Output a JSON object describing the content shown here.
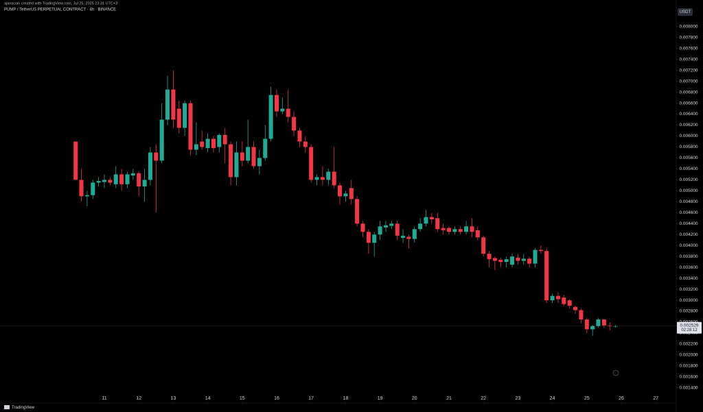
{
  "header": {
    "credit": "ajanscoin created with TradingView.com, Jul 25, 2025 23:31 UTC+3",
    "footer": "TradingView"
  },
  "chart_data": {
    "type": "candlestick",
    "title": "PUMP / TetherUS PERPETUAL CONTRACT · 4h · BINANCE",
    "currency": "USDT",
    "up_color": "#22ab94",
    "down_color": "#f23645",
    "grid": false,
    "xlim": [
      7.972,
      27.594
    ],
    "xticks": [
      11,
      12,
      13,
      14,
      15,
      16,
      17,
      18,
      19,
      20,
      21,
      22,
      23,
      24,
      25,
      26,
      27
    ],
    "ylim": [
      0.00116,
      0.00836
    ],
    "yticks": [
      {
        "value": 0.0014,
        "label": "0.001400"
      },
      {
        "value": 0.0016,
        "label": "0.001600"
      },
      {
        "value": 0.0018,
        "label": "0.001800"
      },
      {
        "value": 0.002,
        "label": "0.002000"
      },
      {
        "value": 0.0022,
        "label": "0.002200"
      },
      {
        "value": 0.0024,
        "label": "0.002400"
      },
      {
        "value": 0.0026,
        "label": "0.002600"
      },
      {
        "value": 0.0028,
        "label": "0.002800"
      },
      {
        "value": 0.003,
        "label": "0.003000"
      },
      {
        "value": 0.0032,
        "label": "0.003200"
      },
      {
        "value": 0.0034,
        "label": "0.003400"
      },
      {
        "value": 0.0036,
        "label": "0.003600"
      },
      {
        "value": 0.0038,
        "label": "0.003800"
      },
      {
        "value": 0.004,
        "label": "0.004000"
      },
      {
        "value": 0.0042,
        "label": "0.004200"
      },
      {
        "value": 0.0044,
        "label": "0.004400"
      },
      {
        "value": 0.0046,
        "label": "0.004600"
      },
      {
        "value": 0.0048,
        "label": "0.004800"
      },
      {
        "value": 0.005,
        "label": "0.005000"
      },
      {
        "value": 0.0052,
        "label": "0.005200"
      },
      {
        "value": 0.0054,
        "label": "0.005400"
      },
      {
        "value": 0.0056,
        "label": "0.005600"
      },
      {
        "value": 0.0058,
        "label": "0.005800"
      },
      {
        "value": 0.006,
        "label": "0.006000"
      },
      {
        "value": 0.0062,
        "label": "0.006200"
      },
      {
        "value": 0.0064,
        "label": "0.006400"
      },
      {
        "value": 0.0066,
        "label": "0.006600"
      },
      {
        "value": 0.0068,
        "label": "0.006800"
      },
      {
        "value": 0.007,
        "label": "0.007000"
      },
      {
        "value": 0.0072,
        "label": "0.007200"
      },
      {
        "value": 0.0074,
        "label": "0.007400"
      },
      {
        "value": 0.0076,
        "label": "0.007600"
      },
      {
        "value": 0.0078,
        "label": "0.007800"
      },
      {
        "value": 0.008,
        "label": "0.008000"
      }
    ],
    "last_price": {
      "value": 0.002529,
      "label": "0.002529"
    },
    "countdown": "02:28:12",
    "x": [
      10.167,
      10.333,
      10.5,
      10.667,
      10.833,
      11,
      11.167,
      11.333,
      11.5,
      11.667,
      11.833,
      12,
      12.167,
      12.333,
      12.5,
      12.667,
      12.833,
      13,
      13.167,
      13.333,
      13.5,
      13.667,
      13.833,
      14,
      14.167,
      14.333,
      14.5,
      14.667,
      14.833,
      15,
      15.167,
      15.333,
      15.5,
      15.667,
      15.833,
      16,
      16.167,
      16.333,
      16.5,
      16.667,
      16.833,
      17,
      17.167,
      17.333,
      17.5,
      17.667,
      17.833,
      18,
      18.167,
      18.333,
      18.5,
      18.667,
      18.833,
      19,
      19.167,
      19.333,
      19.5,
      19.667,
      19.833,
      20,
      20.167,
      20.333,
      20.5,
      20.667,
      20.833,
      21,
      21.167,
      21.333,
      21.5,
      21.667,
      21.833,
      22,
      22.167,
      22.333,
      22.5,
      22.667,
      22.833,
      23,
      23.167,
      23.333,
      23.5,
      23.667,
      23.833,
      24,
      24.167,
      24.333,
      24.5,
      24.667,
      24.833,
      25,
      25.167,
      25.333,
      25.5,
      25.667,
      25.833
    ],
    "open": [
      0.0059,
      0.0052,
      0.0049,
      0.00492,
      0.00515,
      0.00516,
      0.0052,
      0.00512,
      0.0053,
      0.00512,
      0.00528,
      0.00532,
      0.00508,
      0.0052,
      0.0057,
      0.00555,
      0.0063,
      0.00685,
      0.0065,
      0.00615,
      0.0066,
      0.00575,
      0.0059,
      0.00578,
      0.00595,
      0.0058,
      0.00602,
      0.00585,
      0.00525,
      0.0057,
      0.00555,
      0.0058,
      0.00545,
      0.0056,
      0.00595,
      0.00675,
      0.00645,
      0.0065,
      0.00635,
      0.0061,
      0.0059,
      0.0058,
      0.0052,
      0.00525,
      0.0052,
      0.00535,
      0.0051,
      0.0049,
      0.00505,
      0.00485,
      0.0044,
      0.00425,
      0.00405,
      0.0042,
      0.00433,
      0.00436,
      0.0044,
      0.00414,
      0.00416,
      0.00412,
      0.0043,
      0.0044,
      0.00452,
      0.0045,
      0.00432,
      0.00432,
      0.00425,
      0.0043,
      0.00425,
      0.00435,
      0.00428,
      0.00415,
      0.00385,
      0.00377,
      0.00374,
      0.0037,
      0.00365,
      0.00378,
      0.00372,
      0.00376,
      0.00367,
      0.00392,
      0.0039,
      0.003,
      0.00308,
      0.00305,
      0.003,
      0.00288,
      0.00282,
      0.00265,
      0.00247,
      0.00253,
      0.00265,
      0.00254,
      0.00252
    ],
    "high": [
      0.0059,
      0.0054,
      0.005,
      0.0052,
      0.00525,
      0.0053,
      0.00525,
      0.00545,
      0.0054,
      0.00535,
      0.0054,
      0.00535,
      0.0054,
      0.0058,
      0.00585,
      0.0066,
      0.0071,
      0.0072,
      0.00665,
      0.00665,
      0.00665,
      0.00625,
      0.0061,
      0.00605,
      0.006,
      0.00605,
      0.00615,
      0.0059,
      0.0059,
      0.0059,
      0.0063,
      0.0059,
      0.00575,
      0.0062,
      0.0069,
      0.00685,
      0.0067,
      0.00685,
      0.00645,
      0.00615,
      0.006,
      0.00585,
      0.0053,
      0.00545,
      0.0054,
      0.0058,
      0.00515,
      0.005,
      0.0052,
      0.0049,
      0.00445,
      0.0043,
      0.00425,
      0.00445,
      0.00445,
      0.00445,
      0.00445,
      0.0043,
      0.0042,
      0.00435,
      0.0045,
      0.00465,
      0.0046,
      0.0046,
      0.0044,
      0.00435,
      0.00435,
      0.00435,
      0.00445,
      0.0045,
      0.00435,
      0.00418,
      0.0039,
      0.0038,
      0.00378,
      0.0038,
      0.00385,
      0.00385,
      0.00385,
      0.0038,
      0.00395,
      0.004,
      0.00395,
      0.00312,
      0.00315,
      0.0031,
      0.00302,
      0.0029,
      0.00285,
      0.00268,
      0.00255,
      0.00268,
      0.00266,
      0.0026,
      0.00255
    ],
    "low": [
      0.0052,
      0.0048,
      0.00472,
      0.00485,
      0.00508,
      0.00505,
      0.0051,
      0.00505,
      0.005,
      0.00505,
      0.0052,
      0.0049,
      0.0048,
      0.0051,
      0.0046,
      0.0055,
      0.0062,
      0.00615,
      0.00605,
      0.006,
      0.00565,
      0.00565,
      0.00575,
      0.0057,
      0.0057,
      0.0057,
      0.0055,
      0.0051,
      0.0051,
      0.00545,
      0.0055,
      0.0054,
      0.0053,
      0.00555,
      0.0059,
      0.00635,
      0.0064,
      0.00625,
      0.006,
      0.0058,
      0.0057,
      0.00515,
      0.0051,
      0.0051,
      0.0051,
      0.00505,
      0.00475,
      0.0048,
      0.00475,
      0.00435,
      0.00415,
      0.00385,
      0.0038,
      0.0041,
      0.00425,
      0.0043,
      0.0041,
      0.00405,
      0.00395,
      0.00405,
      0.00425,
      0.00435,
      0.0044,
      0.00425,
      0.0042,
      0.0042,
      0.0042,
      0.0042,
      0.0042,
      0.00415,
      0.0041,
      0.0038,
      0.0036,
      0.00355,
      0.0036,
      0.0036,
      0.0036,
      0.00365,
      0.00365,
      0.0036,
      0.0036,
      0.00385,
      0.00295,
      0.00295,
      0.00295,
      0.0029,
      0.00285,
      0.00275,
      0.00258,
      0.0024,
      0.00235,
      0.0025,
      0.0025,
      0.00245,
      0.0025
    ],
    "close": [
      0.0052,
      0.0049,
      0.00492,
      0.00515,
      0.00518,
      0.0052,
      0.00515,
      0.0053,
      0.00512,
      0.0053,
      0.00532,
      0.00508,
      0.0052,
      0.0057,
      0.00555,
      0.0063,
      0.00685,
      0.0063,
      0.00615,
      0.0066,
      0.00575,
      0.00585,
      0.0058,
      0.00595,
      0.00578,
      0.00602,
      0.00585,
      0.00525,
      0.0057,
      0.00555,
      0.0058,
      0.00545,
      0.0056,
      0.00595,
      0.00675,
      0.00645,
      0.0065,
      0.00635,
      0.0061,
      0.0059,
      0.0058,
      0.0052,
      0.00525,
      0.0052,
      0.00535,
      0.0051,
      0.0049,
      0.00495,
      0.00485,
      0.0044,
      0.00425,
      0.00405,
      0.0042,
      0.00435,
      0.00437,
      0.0044,
      0.00418,
      0.00418,
      0.00412,
      0.0043,
      0.0044,
      0.00452,
      0.00448,
      0.0043,
      0.00428,
      0.00425,
      0.0043,
      0.00425,
      0.00435,
      0.00425,
      0.00415,
      0.00385,
      0.00375,
      0.00372,
      0.0037,
      0.00375,
      0.0038,
      0.00372,
      0.00376,
      0.00367,
      0.00392,
      0.0039,
      0.003,
      0.00308,
      0.00302,
      0.00293,
      0.0029,
      0.00282,
      0.00265,
      0.00247,
      0.00253,
      0.00265,
      0.00254,
      0.00253,
      0.002529
    ]
  }
}
